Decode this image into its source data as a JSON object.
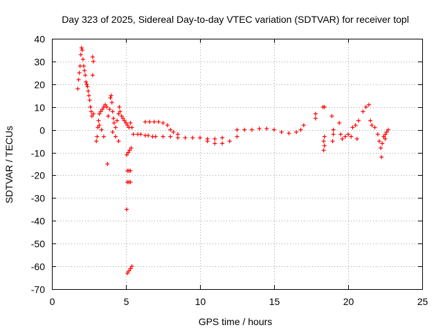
{
  "chart_data": {
    "type": "scatter",
    "title": "Day 323 of 2025, Sidereal Day-to-day VTEC variation (SDTVAR) for receiver topl",
    "xlabel": "GPS time / hours",
    "ylabel": "SDTVAR / TECUs",
    "xlim": [
      0,
      25
    ],
    "ylim": [
      -70,
      40
    ],
    "xticks": [
      0,
      5,
      10,
      15,
      20,
      25
    ],
    "yticks": [
      -70,
      -60,
      -50,
      -40,
      -30,
      -20,
      -10,
      0,
      10,
      20,
      30,
      40
    ],
    "grid": true,
    "marker": "+",
    "color": "#ff0000",
    "series": [
      {
        "name": "SDTVAR",
        "points": [
          [
            1.75,
            18
          ],
          [
            1.8,
            22
          ],
          [
            1.85,
            25
          ],
          [
            1.9,
            28
          ],
          [
            1.95,
            33
          ],
          [
            2.0,
            36
          ],
          [
            2.05,
            35
          ],
          [
            2.1,
            31
          ],
          [
            2.15,
            28
          ],
          [
            2.2,
            26
          ],
          [
            2.25,
            24
          ],
          [
            2.3,
            21
          ],
          [
            2.35,
            20
          ],
          [
            2.4,
            19
          ],
          [
            2.45,
            17
          ],
          [
            2.5,
            15
          ],
          [
            2.55,
            13
          ],
          [
            2.6,
            10
          ],
          [
            2.65,
            8
          ],
          [
            2.7,
            6
          ],
          [
            2.75,
            24
          ],
          [
            2.75,
            32
          ],
          [
            2.8,
            30
          ],
          [
            2.8,
            7
          ],
          [
            3.0,
            -5
          ],
          [
            3.05,
            -3
          ],
          [
            3.1,
            1
          ],
          [
            3.15,
            4
          ],
          [
            3.2,
            7
          ],
          [
            3.3,
            8
          ],
          [
            3.4,
            9
          ],
          [
            3.5,
            10
          ],
          [
            3.6,
            11
          ],
          [
            3.7,
            10
          ],
          [
            3.75,
            -15
          ],
          [
            3.8,
            6
          ],
          [
            3.9,
            9
          ],
          [
            3.95,
            14
          ],
          [
            4.0,
            15
          ],
          [
            4.05,
            12
          ],
          [
            4.1,
            8
          ],
          [
            4.15,
            5
          ],
          [
            4.2,
            3
          ],
          [
            4.3,
            1
          ],
          [
            4.4,
            4
          ],
          [
            4.5,
            7
          ],
          [
            4.55,
            10
          ],
          [
            4.6,
            8
          ],
          [
            4.7,
            6
          ],
          [
            4.8,
            5
          ],
          [
            4.9,
            4
          ],
          [
            5.0,
            3
          ],
          [
            5.1,
            2
          ],
          [
            5.2,
            1
          ],
          [
            5.3,
            3
          ],
          [
            5.4,
            1
          ],
          [
            3.2,
            2
          ],
          [
            3.35,
            0
          ],
          [
            3.5,
            -3
          ],
          [
            4.1,
            -1
          ],
          [
            4.3,
            -3
          ],
          [
            4.5,
            -5
          ],
          [
            5.05,
            -11
          ],
          [
            5.15,
            -10
          ],
          [
            5.25,
            -9
          ],
          [
            5.35,
            -8
          ],
          [
            5.1,
            -18
          ],
          [
            5.2,
            -18
          ],
          [
            5.3,
            -18
          ],
          [
            5.1,
            -23
          ],
          [
            5.2,
            -23
          ],
          [
            5.3,
            -23
          ],
          [
            5.05,
            -35
          ],
          [
            5.1,
            -63
          ],
          [
            5.2,
            -62
          ],
          [
            5.3,
            -61
          ],
          [
            5.4,
            -60
          ],
          [
            5.5,
            -2
          ],
          [
            5.8,
            -2
          ],
          [
            6.0,
            -2
          ],
          [
            6.3,
            -2.5
          ],
          [
            6.5,
            -2.5
          ],
          [
            6.8,
            -3
          ],
          [
            6.3,
            3.5
          ],
          [
            6.6,
            3.5
          ],
          [
            6.9,
            3.5
          ],
          [
            7.2,
            3.5
          ],
          [
            7.5,
            3
          ],
          [
            7.8,
            2
          ],
          [
            8.0,
            0
          ],
          [
            8.2,
            -1
          ],
          [
            8.5,
            -2
          ],
          [
            7.0,
            -3
          ],
          [
            7.5,
            -3
          ],
          [
            8.0,
            -3
          ],
          [
            8.5,
            -3.5
          ],
          [
            9.0,
            -3.5
          ],
          [
            9.5,
            -3.5
          ],
          [
            10.0,
            -3.5
          ],
          [
            10.5,
            -4
          ],
          [
            11.0,
            -4
          ],
          [
            11.5,
            -3.5
          ],
          [
            10.5,
            -5
          ],
          [
            11.0,
            -6
          ],
          [
            11.5,
            -6
          ],
          [
            12.0,
            -5
          ],
          [
            12.5,
            -3
          ],
          [
            12.5,
            0
          ],
          [
            13.0,
            0
          ],
          [
            13.5,
            0
          ],
          [
            14.0,
            0.5
          ],
          [
            14.5,
            0.5
          ],
          [
            15.0,
            0
          ],
          [
            15.5,
            -1
          ],
          [
            16.0,
            -1.5
          ],
          [
            16.5,
            -1
          ],
          [
            16.8,
            0
          ],
          [
            17.0,
            2
          ],
          [
            17.8,
            5
          ],
          [
            17.8,
            7
          ],
          [
            18.3,
            10
          ],
          [
            18.4,
            10
          ],
          [
            18.35,
            -5
          ],
          [
            18.4,
            -7
          ],
          [
            18.35,
            -9
          ],
          [
            18.4,
            -3
          ],
          [
            18.9,
            6
          ],
          [
            19.0,
            -2
          ],
          [
            19.0,
            0
          ],
          [
            18.95,
            -5
          ],
          [
            19.4,
            3
          ],
          [
            19.5,
            -2
          ],
          [
            19.6,
            -4
          ],
          [
            19.8,
            -3
          ],
          [
            20.0,
            -2
          ],
          [
            20.2,
            -3
          ],
          [
            20.3,
            1
          ],
          [
            20.5,
            2
          ],
          [
            20.6,
            -4
          ],
          [
            20.7,
            4
          ],
          [
            21.0,
            8
          ],
          [
            21.2,
            10
          ],
          [
            21.4,
            11
          ],
          [
            21.5,
            4
          ],
          [
            21.6,
            2
          ],
          [
            21.8,
            1
          ],
          [
            22.0,
            -2
          ],
          [
            22.1,
            -5
          ],
          [
            22.2,
            -8
          ],
          [
            22.25,
            -12
          ],
          [
            22.3,
            -6
          ],
          [
            22.4,
            -3
          ],
          [
            22.5,
            -2
          ],
          [
            22.6,
            -1
          ],
          [
            22.7,
            0
          ],
          [
            22.5,
            -4
          ]
        ]
      }
    ]
  }
}
